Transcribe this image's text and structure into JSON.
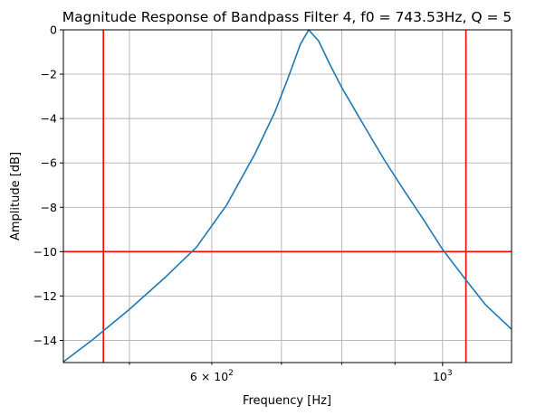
{
  "chart_data": {
    "type": "line",
    "title": "Magnitude Response of Bandpass Filter 4, f0 = 743.53Hz, Q = 5",
    "xlabel": "Frequency [Hz]",
    "ylabel": "Amplitude [dB]",
    "x_scale": "log",
    "xlim": [
      432,
      1165
    ],
    "ylim": [
      -15,
      0
    ],
    "grid": true,
    "y_ticks": [
      0,
      -2,
      -4,
      -6,
      -8,
      -10,
      -12,
      -14
    ],
    "y_tick_labels": [
      "0",
      "−2",
      "−4",
      "−6",
      "−8",
      "−10",
      "−12",
      "−14"
    ],
    "x_major_ticks": [
      1000
    ],
    "x_minor_ticks": [
      500,
      600,
      700,
      800,
      900
    ],
    "x_tick_labels": [
      {
        "value": 600,
        "base": "6 × 10",
        "exp": "2"
      },
      {
        "value": 1000,
        "base": "10",
        "exp": "3"
      }
    ],
    "series": [
      {
        "color": "#1f77b4",
        "x": [
          432,
          460,
          500,
          540,
          580,
          620,
          660,
          690,
          710,
          730,
          743.53,
          760,
          780,
          800,
          840,
          880,
          920,
          960,
          1000,
          1050,
          1100,
          1165
        ],
        "y": [
          -14.97,
          -14.0,
          -12.6,
          -11.2,
          -9.8,
          -7.9,
          -5.6,
          -3.7,
          -2.2,
          -0.65,
          0.0,
          -0.5,
          -1.6,
          -2.6,
          -4.3,
          -5.9,
          -7.3,
          -8.6,
          -9.9,
          -11.2,
          -12.4,
          -13.5
        ]
      }
    ],
    "reference_lines": {
      "color": "#ff0000",
      "vertical_x": [
        472,
        1053
      ],
      "horizontal_y": [
        -10
      ]
    }
  }
}
